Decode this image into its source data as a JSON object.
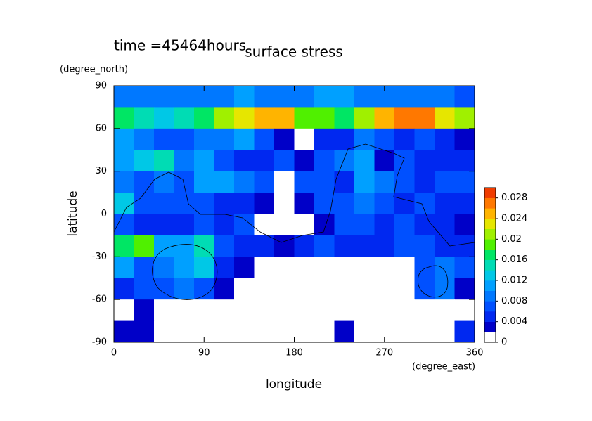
{
  "chart_data": {
    "type": "contour",
    "title": "surface stress",
    "subtitle": "time =45464hours",
    "xlabel": "longitude",
    "xunit": "(degree_east)",
    "ylabel": "latitude",
    "yunit": "(degree_north)",
    "xlim": [
      0,
      360
    ],
    "xticks": [
      0,
      90,
      180,
      270,
      360
    ],
    "ylim": [
      -90,
      90
    ],
    "yticks": [
      90,
      60,
      30,
      0,
      -30,
      -60,
      -90
    ],
    "x": [
      10,
      30,
      50,
      70,
      90,
      110,
      130,
      150,
      170,
      190,
      210,
      230,
      250,
      270,
      290,
      310,
      330,
      350
    ],
    "y": [
      82.5,
      67.5,
      52.5,
      37.5,
      22.5,
      7.5,
      -7.5,
      -22.5,
      -37.5,
      -52.5,
      -67.5,
      -82.5
    ],
    "z": [
      [
        0.008,
        0.008,
        0.008,
        0.008,
        0.008,
        0.008,
        0.01,
        0.008,
        0.008,
        0.008,
        0.01,
        0.01,
        0.008,
        0.008,
        0.008,
        0.008,
        0.008,
        0.006
      ],
      [
        0.016,
        0.014,
        0.012,
        0.014,
        0.016,
        0.02,
        0.022,
        0.024,
        0.024,
        0.018,
        0.018,
        0.016,
        0.02,
        0.024,
        0.026,
        0.026,
        0.022,
        0.02
      ],
      [
        0.01,
        0.008,
        0.006,
        0.006,
        0.008,
        0.008,
        0.01,
        0.006,
        0.002,
        0,
        0.004,
        0.004,
        0.008,
        0.006,
        0.004,
        0.006,
        0.004,
        0.002
      ],
      [
        0.01,
        0.012,
        0.014,
        0.008,
        0.01,
        0.006,
        0.004,
        0.004,
        0.006,
        0.002,
        0.006,
        0.008,
        0.01,
        0.002,
        0.006,
        0.004,
        0.004,
        0.004
      ],
      [
        0.008,
        0.006,
        0.008,
        0.006,
        0.01,
        0.01,
        0.008,
        0.006,
        0,
        0.006,
        0.006,
        0.004,
        0.01,
        0.008,
        0.006,
        0.004,
        0.006,
        0.006
      ],
      [
        0.012,
        0.006,
        0.006,
        0.006,
        0.006,
        0.004,
        0.004,
        0.002,
        0,
        0.002,
        0.006,
        0.006,
        0.008,
        0.006,
        0.004,
        0.006,
        0.004,
        0.004
      ],
      [
        0.006,
        0.004,
        0.004,
        0.004,
        0.006,
        0.004,
        0.006,
        0,
        0,
        0,
        0.002,
        0.006,
        0.006,
        0.004,
        0.006,
        0.004,
        0.004,
        0.002
      ],
      [
        0.016,
        0.018,
        0.01,
        0.01,
        0.014,
        0.006,
        0.004,
        0.004,
        0.002,
        0.004,
        0.006,
        0.004,
        0.004,
        0.004,
        0.006,
        0.006,
        0.004,
        0.004
      ],
      [
        0.01,
        0.006,
        0.008,
        0.01,
        0.012,
        0.004,
        0.002,
        0,
        0,
        0,
        0,
        0,
        0,
        0,
        0,
        0.006,
        0.008,
        0.006
      ],
      [
        0.004,
        0.006,
        0.006,
        0.008,
        0.006,
        0.002,
        0,
        0,
        0,
        0,
        0,
        0,
        0,
        0,
        0,
        0.006,
        0.008,
        0.002
      ],
      [
        0,
        0.002,
        0,
        0,
        0,
        0,
        0,
        0,
        0,
        0,
        0,
        0,
        0,
        0,
        0,
        0,
        0,
        0
      ],
      [
        0.002,
        0.002,
        0,
        0,
        0,
        0,
        0,
        0,
        0,
        0,
        0,
        0.002,
        0,
        0,
        0,
        0,
        0,
        0.004
      ]
    ],
    "levels": [
      0,
      0.002,
      0.004,
      0.006,
      0.008,
      0.01,
      0.012,
      0.014,
      0.016,
      0.018,
      0.02,
      0.022,
      0.024,
      0.026,
      0.028,
      0.03
    ],
    "colors": [
      "#ffffff",
      "#0000c8",
      "#0028f0",
      "#0050ff",
      "#0078ff",
      "#00a0ff",
      "#00c8e6",
      "#00dcb4",
      "#00e664",
      "#50f000",
      "#a0f000",
      "#e6e600",
      "#ffb400",
      "#ff7800",
      "#f03c00"
    ],
    "clim": [
      0,
      0.03
    ],
    "cticks": [
      0,
      0.004,
      0.008,
      0.012,
      0.016,
      0.02,
      0.024,
      0.028
    ]
  }
}
